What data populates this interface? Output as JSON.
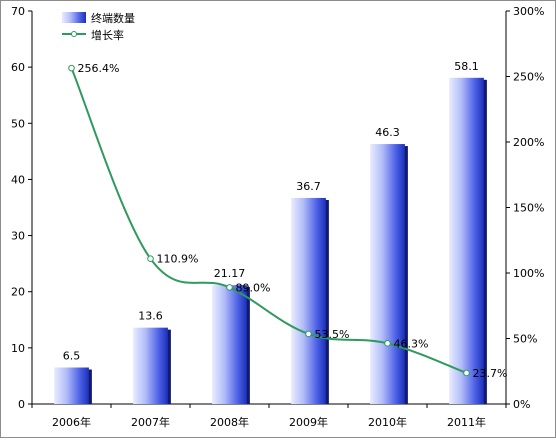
{
  "chart_data": {
    "type": "bar",
    "categories": [
      "2006年",
      "2007年",
      "2008年",
      "2009年",
      "2010年",
      "2011年"
    ],
    "series": [
      {
        "name": "终端数量",
        "type": "bar",
        "axis": "left",
        "values": [
          6.5,
          13.6,
          21.17,
          36.7,
          46.3,
          58.1
        ],
        "labels": [
          "6.5",
          "13.6",
          "21.17",
          "36.7",
          "46.3",
          "58.1"
        ],
        "color": "#3a4fd8"
      },
      {
        "name": "增长率",
        "type": "line",
        "axis": "right",
        "values": [
          256.4,
          110.9,
          89.0,
          53.5,
          46.3,
          23.7
        ],
        "labels": [
          "256.4%",
          "110.9%",
          "89.0%",
          "53.5%",
          "46.3%",
          "23.7%"
        ],
        "color": "#2e9a5e"
      }
    ],
    "left_axis": {
      "ylim": [
        0,
        70
      ],
      "ticks": [
        "0",
        "10",
        "20",
        "30",
        "40",
        "50",
        "60",
        "70"
      ]
    },
    "right_axis": {
      "ylim": [
        0,
        300
      ],
      "ticks": [
        "0%",
        "50%",
        "100%",
        "150%",
        "200%",
        "250%",
        "300%"
      ]
    },
    "legend": "top-left",
    "grid": false
  }
}
